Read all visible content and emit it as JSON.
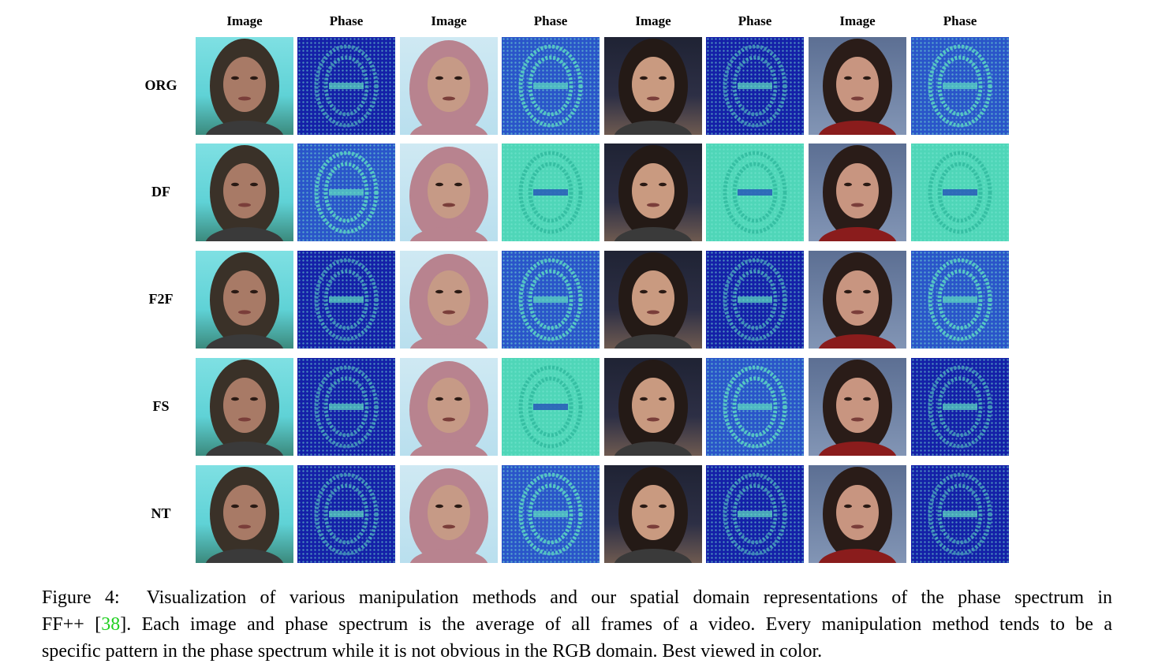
{
  "figure": {
    "column_headers": [
      "Image",
      "Phase",
      "Image",
      "Phase",
      "Image",
      "Phase",
      "Image",
      "Phase"
    ],
    "row_labels": [
      "ORG",
      "DF",
      "F2F",
      "FS",
      "NT"
    ],
    "phase_tone": [
      [
        "dark",
        "mid",
        "dark",
        "mid"
      ],
      [
        "mid",
        "light",
        "light",
        "light"
      ],
      [
        "dark",
        "mid",
        "dark",
        "mid"
      ],
      [
        "dark",
        "light",
        "mid",
        "dark"
      ],
      [
        "dark",
        "mid",
        "dark",
        "dark"
      ]
    ]
  },
  "caption": {
    "label": "Figure 4:",
    "line1": "Visualization of various manipulation methods and our spatial domain representations of the phase spectrum in",
    "line2_pre": "FF++ [",
    "citation": "38",
    "line2_post": "]. Each image and phase spectrum is the average of all frames of a video. Every manipulation method tends to be a",
    "line3": "specific pattern in the phase spectrum while it is not obvious in the RGB domain. Best viewed in color.",
    "citation_color": "#1fcf1f"
  }
}
